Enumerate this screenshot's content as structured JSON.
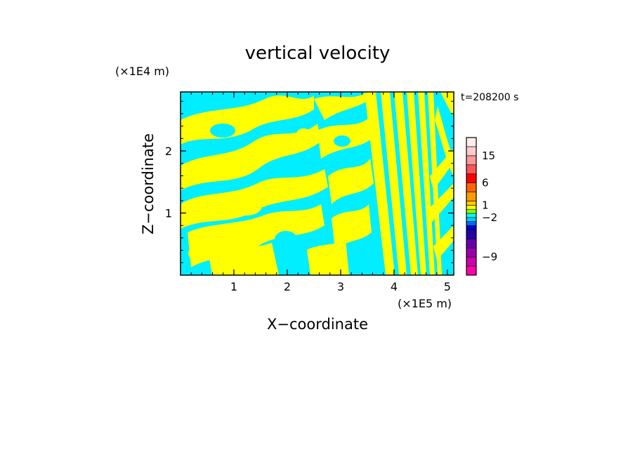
{
  "chart_data": {
    "type": "heatmap",
    "title": "vertical velocity",
    "xlabel": "X−coordinate",
    "ylabel": "Z−coordinate",
    "x_unit": "(×1E5 m)",
    "y_unit": "(×1E4 m)",
    "time_label": "t=208200 s",
    "xlim": [
      0,
      5.12
    ],
    "ylim": [
      0,
      2.95
    ],
    "x_ticks": [
      {
        "value": 1,
        "label": "1"
      },
      {
        "value": 2,
        "label": "2"
      },
      {
        "value": 3,
        "label": "3"
      },
      {
        "value": 4,
        "label": "4"
      },
      {
        "value": 5,
        "label": "5"
      }
    ],
    "y_ticks": [
      {
        "value": 1,
        "label": "1"
      },
      {
        "value": 2,
        "label": "2"
      }
    ],
    "field_colors": {
      "positive": "#ffff00",
      "negative": "#00eeff"
    },
    "colorbar": {
      "levels": [
        {
          "color": "#ff00aa"
        },
        {
          "color": "#cc00aa"
        },
        {
          "color": "#9900aa"
        },
        {
          "color": "#6600aa"
        },
        {
          "color": "#2200aa"
        },
        {
          "color": "#0000cc"
        },
        {
          "color": "#0066ff"
        },
        {
          "color": "#00ccff"
        },
        {
          "color": "#00ffff"
        },
        {
          "color": "#88ff00"
        },
        {
          "color": "#ffff00"
        },
        {
          "color": "#ffcc00"
        },
        {
          "color": "#ff9900"
        },
        {
          "color": "#ff6600"
        },
        {
          "color": "#ff0000"
        },
        {
          "color": "#ff5555"
        },
        {
          "color": "#ff9999"
        },
        {
          "color": "#ffcccc"
        },
        {
          "color": "#ffeeee"
        }
      ],
      "labels": [
        {
          "value": "15",
          "level_index": 16
        },
        {
          "value": "6",
          "level_index": 13
        },
        {
          "value": "1",
          "level_index": 10
        },
        {
          "value": "−2",
          "level_index": 7
        },
        {
          "value": "−9",
          "level_index": 1
        }
      ]
    }
  }
}
